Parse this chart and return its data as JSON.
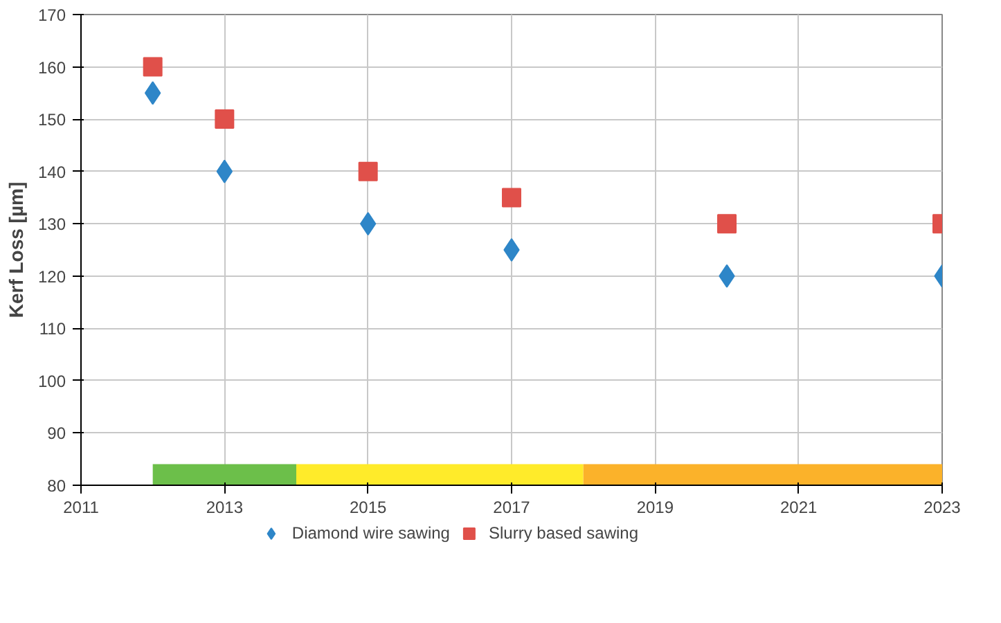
{
  "chart_data": {
    "type": "scatter",
    "ylabel": "Kerf Loss [µm]",
    "x": [
      2012,
      2013,
      2015,
      2017,
      2020,
      2023
    ],
    "series": [
      {
        "name": "Diamond wire sawing",
        "color": "#2e86c8",
        "marker": "diamond",
        "values": [
          155,
          140,
          130,
          125,
          120,
          120
        ]
      },
      {
        "name": "Slurry based sawing",
        "color": "#e0504a",
        "marker": "square",
        "values": [
          160,
          150,
          140,
          135,
          130,
          130
        ]
      }
    ],
    "xlim": [
      2011,
      2023
    ],
    "xticks": [
      2011,
      2013,
      2015,
      2017,
      2019,
      2021,
      2023
    ],
    "ylim": [
      80,
      170
    ],
    "yticks": [
      80,
      90,
      100,
      110,
      120,
      130,
      140,
      150,
      160,
      170
    ],
    "bands": [
      {
        "axis": "x",
        "from": 2012,
        "to": 2014,
        "label": null,
        "color": "#6cbf4a"
      },
      {
        "axis": "x",
        "from": 2014,
        "to": 2018,
        "label": null,
        "color": "#ffeb2a"
      },
      {
        "axis": "x",
        "from": 2018,
        "to": 2023,
        "label": null,
        "color": "#fbb22a"
      }
    ],
    "grid": true,
    "legend": "bottom"
  }
}
